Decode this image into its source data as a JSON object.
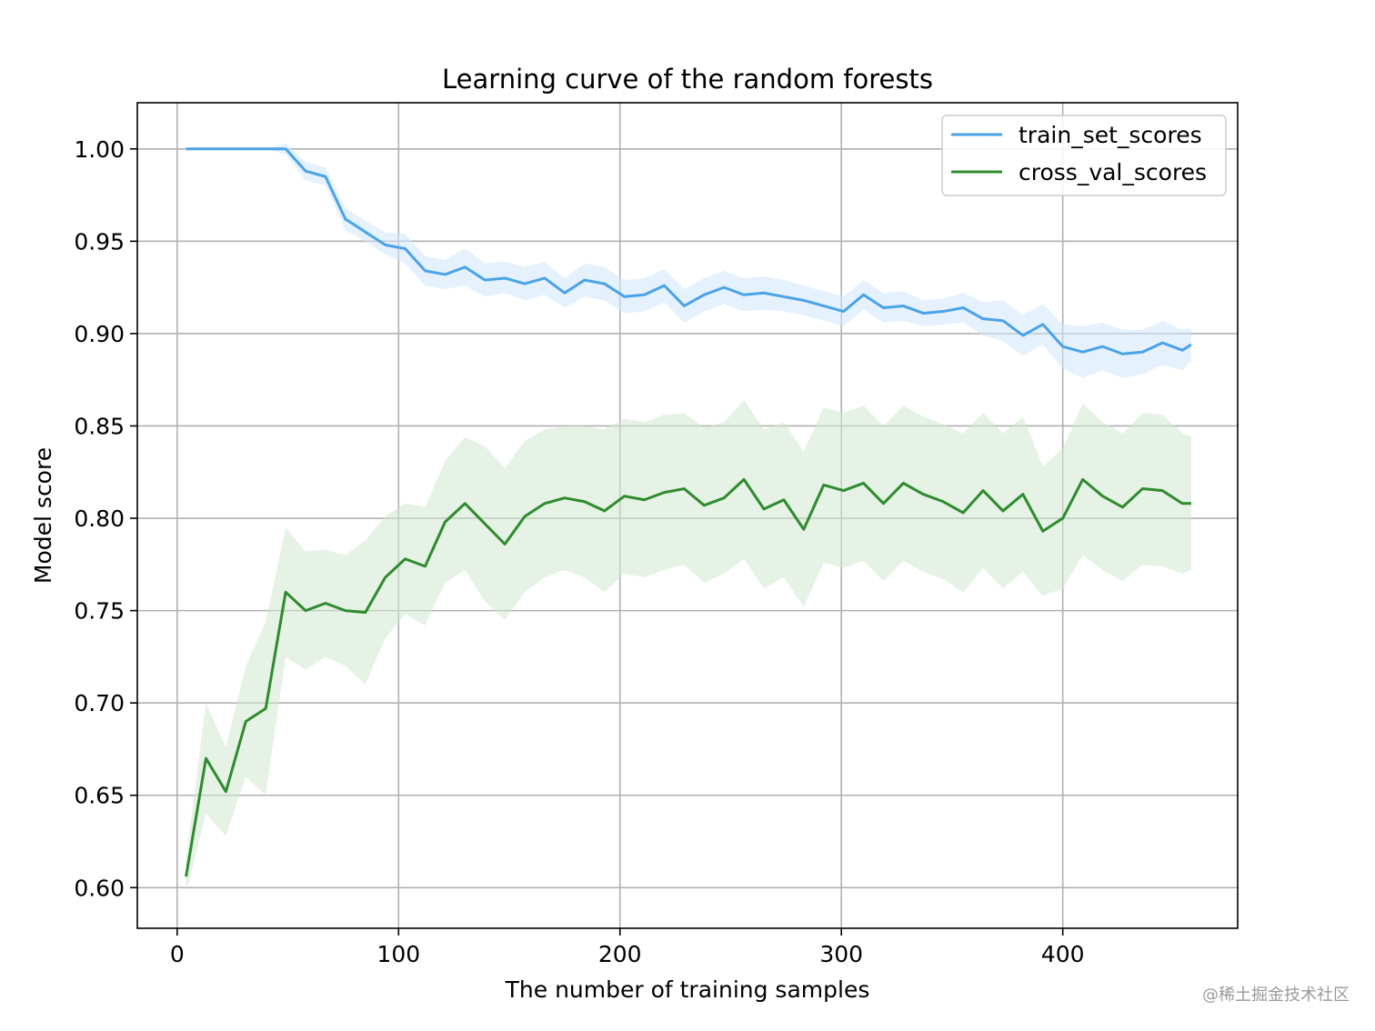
{
  "chart_data": {
    "type": "line",
    "title": "Learning curve of the random forests",
    "xlabel": "The number of training samples",
    "ylabel": "Model score",
    "xlim": [
      -18,
      479
    ],
    "ylim": [
      0.578,
      1.025
    ],
    "xticks": [
      0,
      100,
      200,
      300,
      400
    ],
    "yticks": [
      0.6,
      0.65,
      0.7,
      0.75,
      0.8,
      0.85,
      0.9,
      0.95,
      1.0
    ],
    "xtick_labels": [
      "0",
      "100",
      "200",
      "300",
      "400"
    ],
    "ytick_labels": [
      "0.60",
      "0.65",
      "0.70",
      "0.75",
      "0.80",
      "0.85",
      "0.90",
      "0.95",
      "1.00"
    ],
    "grid": true,
    "legend_position": "top-right",
    "x": [
      4,
      13,
      22,
      31,
      40,
      49,
      58,
      67,
      76,
      85,
      94,
      103,
      112,
      121,
      130,
      139,
      148,
      157,
      166,
      175,
      184,
      193,
      202,
      211,
      220,
      229,
      238,
      247,
      256,
      265,
      274,
      283,
      292,
      301,
      310,
      319,
      328,
      337,
      346,
      355,
      364,
      373,
      382,
      391,
      400,
      409,
      418,
      427,
      436,
      445,
      454,
      458
    ],
    "series": [
      {
        "name": "train_set_scores",
        "color": "#4aa3e8",
        "band_color": "#cfe6fb",
        "values": [
          1.0,
          1.0,
          1.0,
          1.0,
          1.0,
          1.0,
          0.988,
          0.985,
          0.962,
          0.955,
          0.948,
          0.946,
          0.934,
          0.932,
          0.936,
          0.929,
          0.93,
          0.927,
          0.93,
          0.922,
          0.929,
          0.927,
          0.92,
          0.921,
          0.926,
          0.915,
          0.921,
          0.925,
          0.921,
          0.922,
          0.92,
          0.918,
          0.915,
          0.912,
          0.921,
          0.914,
          0.915,
          0.911,
          0.912,
          0.914,
          0.908,
          0.907,
          0.899,
          0.905,
          0.893,
          0.89,
          0.893,
          0.889,
          0.89,
          0.895,
          0.891,
          0.894
        ],
        "lower": [
          1.0,
          1.0,
          1.0,
          1.0,
          1.0,
          0.997,
          0.983,
          0.98,
          0.956,
          0.95,
          0.943,
          0.938,
          0.926,
          0.924,
          0.926,
          0.92,
          0.922,
          0.918,
          0.921,
          0.914,
          0.92,
          0.918,
          0.911,
          0.912,
          0.917,
          0.906,
          0.912,
          0.916,
          0.912,
          0.913,
          0.912,
          0.91,
          0.907,
          0.904,
          0.913,
          0.906,
          0.907,
          0.904,
          0.905,
          0.906,
          0.899,
          0.896,
          0.888,
          0.894,
          0.881,
          0.876,
          0.88,
          0.876,
          0.878,
          0.883,
          0.88,
          0.885
        ],
        "upper": [
          1.0,
          1.0,
          1.0,
          1.0,
          1.0,
          1.003,
          0.993,
          0.99,
          0.968,
          0.961,
          0.955,
          0.954,
          0.942,
          0.94,
          0.946,
          0.938,
          0.939,
          0.936,
          0.939,
          0.93,
          0.938,
          0.936,
          0.929,
          0.93,
          0.935,
          0.924,
          0.93,
          0.934,
          0.93,
          0.931,
          0.929,
          0.926,
          0.923,
          0.92,
          0.929,
          0.922,
          0.923,
          0.918,
          0.919,
          0.922,
          0.917,
          0.918,
          0.91,
          0.916,
          0.905,
          0.904,
          0.906,
          0.902,
          0.902,
          0.907,
          0.902,
          0.903
        ]
      },
      {
        "name": "cross_val_scores",
        "color": "#2e8b2e",
        "band_color": "#cfe8cf",
        "values": [
          0.606,
          0.67,
          0.652,
          0.69,
          0.697,
          0.76,
          0.75,
          0.754,
          0.75,
          0.749,
          0.768,
          0.778,
          0.774,
          0.798,
          0.808,
          0.797,
          0.786,
          0.801,
          0.808,
          0.811,
          0.809,
          0.804,
          0.812,
          0.81,
          0.814,
          0.816,
          0.807,
          0.811,
          0.821,
          0.805,
          0.81,
          0.794,
          0.818,
          0.815,
          0.819,
          0.808,
          0.819,
          0.813,
          0.809,
          0.803,
          0.815,
          0.804,
          0.813,
          0.793,
          0.8,
          0.821,
          0.812,
          0.806,
          0.816,
          0.815,
          0.808,
          0.808
        ],
        "lower": [
          0.597,
          0.64,
          0.628,
          0.66,
          0.65,
          0.725,
          0.718,
          0.725,
          0.72,
          0.71,
          0.735,
          0.748,
          0.742,
          0.765,
          0.772,
          0.755,
          0.745,
          0.76,
          0.768,
          0.772,
          0.768,
          0.76,
          0.77,
          0.768,
          0.772,
          0.775,
          0.765,
          0.77,
          0.778,
          0.762,
          0.768,
          0.752,
          0.776,
          0.773,
          0.777,
          0.766,
          0.777,
          0.771,
          0.767,
          0.76,
          0.773,
          0.762,
          0.771,
          0.758,
          0.762,
          0.78,
          0.772,
          0.766,
          0.775,
          0.774,
          0.77,
          0.772
        ],
        "upper": [
          0.615,
          0.7,
          0.676,
          0.72,
          0.744,
          0.795,
          0.782,
          0.783,
          0.78,
          0.788,
          0.801,
          0.808,
          0.806,
          0.831,
          0.844,
          0.839,
          0.827,
          0.842,
          0.848,
          0.85,
          0.85,
          0.848,
          0.854,
          0.852,
          0.856,
          0.857,
          0.849,
          0.852,
          0.864,
          0.848,
          0.852,
          0.836,
          0.86,
          0.857,
          0.861,
          0.85,
          0.861,
          0.855,
          0.851,
          0.846,
          0.857,
          0.846,
          0.855,
          0.828,
          0.838,
          0.862,
          0.852,
          0.846,
          0.857,
          0.856,
          0.846,
          0.844
        ]
      }
    ]
  },
  "watermark": "@稀土掘金技术社区"
}
